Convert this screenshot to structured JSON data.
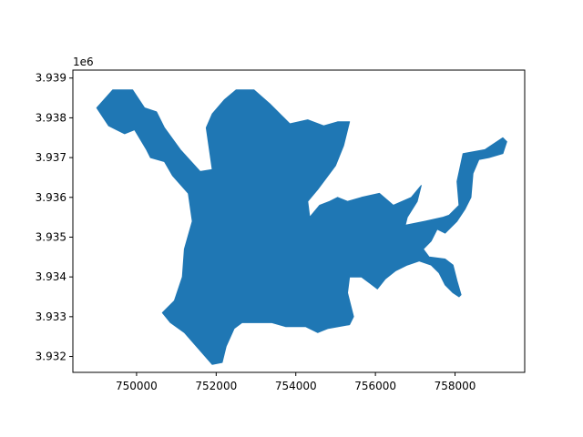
{
  "chart_data": {
    "type": "area",
    "title": "",
    "xlabel": "",
    "ylabel": "",
    "y_offset_label": "1e6",
    "xlim": [
      748400,
      759750
    ],
    "ylim": [
      3.9316,
      3.9392
    ],
    "x_ticks": [
      750000,
      752000,
      754000,
      756000,
      758000
    ],
    "x_tick_labels": [
      "750000",
      "752000",
      "754000",
      "756000",
      "758000"
    ],
    "y_ticks": [
      3.932,
      3.933,
      3.934,
      3.935,
      3.936,
      3.937,
      3.938,
      3.939
    ],
    "y_tick_labels": [
      "3.932",
      "3.933",
      "3.934",
      "3.935",
      "3.936",
      "3.937",
      "3.938",
      "3.939"
    ],
    "grid": false,
    "legend": "none",
    "fill_color": "#1f77b4",
    "axes_color": "#000000",
    "series": [
      {
        "shape": "main-region",
        "points": [
          [
            749000,
            3.93825
          ],
          [
            749400,
            3.9387
          ],
          [
            749900,
            3.9387
          ],
          [
            750200,
            3.93825
          ],
          [
            750500,
            3.93815
          ],
          [
            750700,
            3.93775
          ],
          [
            751100,
            3.9372
          ],
          [
            751600,
            3.93665
          ],
          [
            751900,
            3.9367
          ],
          [
            751750,
            3.93775
          ],
          [
            751900,
            3.9381
          ],
          [
            752200,
            3.93845
          ],
          [
            752500,
            3.9387
          ],
          [
            752950,
            3.9387
          ],
          [
            753350,
            3.93835
          ],
          [
            753700,
            3.938
          ],
          [
            753850,
            3.93785
          ],
          [
            754300,
            3.93795
          ],
          [
            754700,
            3.9378
          ],
          [
            755050,
            3.9379
          ],
          [
            755350,
            3.9379
          ],
          [
            755200,
            3.9373
          ],
          [
            755000,
            3.9368
          ],
          [
            754550,
            3.9362
          ],
          [
            754300,
            3.9359
          ],
          [
            754350,
            3.9355
          ],
          [
            754600,
            3.9358
          ],
          [
            754850,
            3.9359
          ],
          [
            755050,
            3.936
          ],
          [
            755300,
            3.9359
          ],
          [
            755650,
            3.936
          ],
          [
            756100,
            3.9361
          ],
          [
            756450,
            3.9358
          ],
          [
            756900,
            3.936
          ],
          [
            757150,
            3.9363
          ],
          [
            757050,
            3.9359
          ],
          [
            756800,
            3.9355
          ],
          [
            756750,
            3.9353
          ],
          [
            757250,
            3.9354
          ],
          [
            757700,
            3.9355
          ],
          [
            757850,
            3.93555
          ],
          [
            758100,
            3.9358
          ],
          [
            758050,
            3.9364
          ],
          [
            758200,
            3.9371
          ],
          [
            758750,
            3.9372
          ],
          [
            759200,
            3.9375
          ],
          [
            759300,
            3.9374
          ],
          [
            759200,
            3.9371
          ],
          [
            758850,
            3.937
          ],
          [
            758600,
            3.93695
          ],
          [
            758450,
            3.9366
          ],
          [
            758400,
            3.936
          ],
          [
            758250,
            3.9357
          ],
          [
            758050,
            3.9354
          ],
          [
            757750,
            3.9351
          ],
          [
            757550,
            3.9352
          ],
          [
            757400,
            3.9349
          ],
          [
            757200,
            3.9347
          ],
          [
            757350,
            3.9345
          ],
          [
            757750,
            3.93445
          ],
          [
            757950,
            3.9343
          ],
          [
            758050,
            3.9339
          ],
          [
            758150,
            3.93355
          ],
          [
            758100,
            3.9335
          ],
          [
            757950,
            3.9336
          ],
          [
            757750,
            3.9338
          ],
          [
            757600,
            3.9341
          ],
          [
            757400,
            3.9343
          ],
          [
            757100,
            3.9344
          ],
          [
            756800,
            3.9343
          ],
          [
            756500,
            3.93415
          ],
          [
            756250,
            3.93395
          ],
          [
            756050,
            3.9337
          ],
          [
            755850,
            3.93385
          ],
          [
            755650,
            3.934
          ],
          [
            755350,
            3.934
          ],
          [
            755300,
            3.9336
          ],
          [
            755450,
            3.933
          ],
          [
            755350,
            3.9328
          ],
          [
            754800,
            3.9327
          ],
          [
            754550,
            3.9326
          ],
          [
            754250,
            3.93275
          ],
          [
            753750,
            3.93275
          ],
          [
            753400,
            3.93285
          ],
          [
            752650,
            3.93285
          ],
          [
            752450,
            3.9327
          ],
          [
            752250,
            3.93225
          ],
          [
            752150,
            3.93185
          ],
          [
            751900,
            3.9318
          ],
          [
            751550,
            3.9322
          ],
          [
            751200,
            3.9326
          ],
          [
            750850,
            3.93285
          ],
          [
            750650,
            3.9331
          ],
          [
            750950,
            3.9334
          ],
          [
            751150,
            3.934
          ],
          [
            751200,
            3.9347
          ],
          [
            751400,
            3.9354
          ],
          [
            751300,
            3.9361
          ],
          [
            750900,
            3.93655
          ],
          [
            750700,
            3.9369
          ],
          [
            750350,
            3.937
          ],
          [
            750250,
            3.9372
          ],
          [
            749950,
            3.9377
          ],
          [
            749700,
            3.9376
          ],
          [
            749300,
            3.9378
          ]
        ]
      }
    ]
  }
}
